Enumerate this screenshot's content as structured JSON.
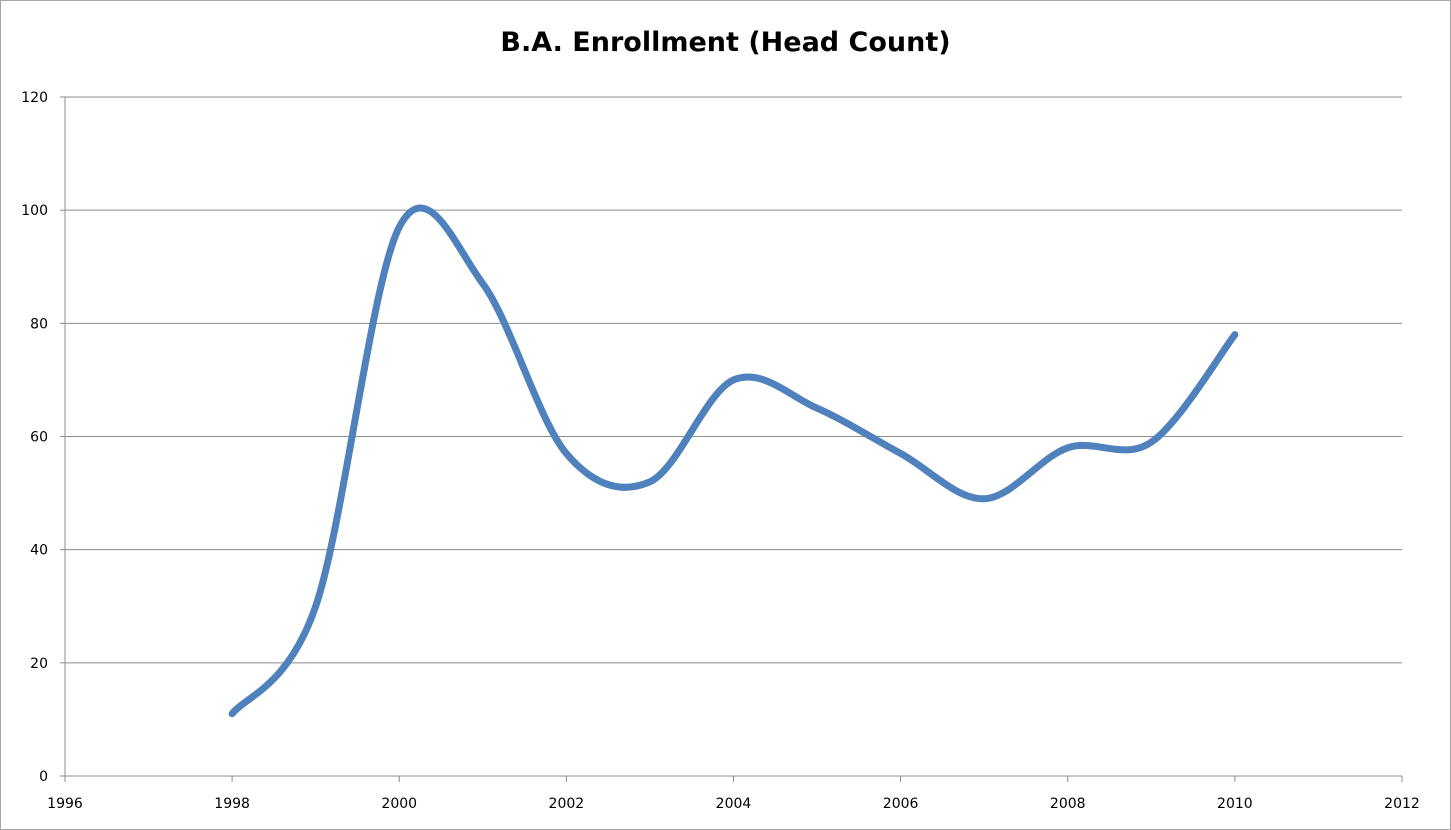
{
  "chart_data": {
    "type": "line",
    "title": "B.A. Enrollment (Head Count)",
    "xlabel": "",
    "ylabel": "",
    "xlim": [
      1996,
      2012
    ],
    "ylim": [
      0,
      120
    ],
    "x_ticks": [
      1996,
      1998,
      2000,
      2002,
      2004,
      2006,
      2008,
      2010,
      2012
    ],
    "y_ticks": [
      0,
      20,
      40,
      60,
      80,
      100,
      120
    ],
    "grid": "horizontal",
    "legend": "none",
    "smooth": true,
    "series": [
      {
        "color": "#4f81bd",
        "points": [
          {
            "x": 1998,
            "y": 11
          },
          {
            "x": 1999,
            "y": 30
          },
          {
            "x": 2000,
            "y": 97
          },
          {
            "x": 2001,
            "y": 87
          },
          {
            "x": 2002,
            "y": 57
          },
          {
            "x": 2003,
            "y": 52
          },
          {
            "x": 2004,
            "y": 70
          },
          {
            "x": 2005,
            "y": 65
          },
          {
            "x": 2006,
            "y": 57
          },
          {
            "x": 2007,
            "y": 49
          },
          {
            "x": 2008,
            "y": 58
          },
          {
            "x": 2009,
            "y": 59
          },
          {
            "x": 2010,
            "y": 78
          }
        ]
      }
    ]
  }
}
